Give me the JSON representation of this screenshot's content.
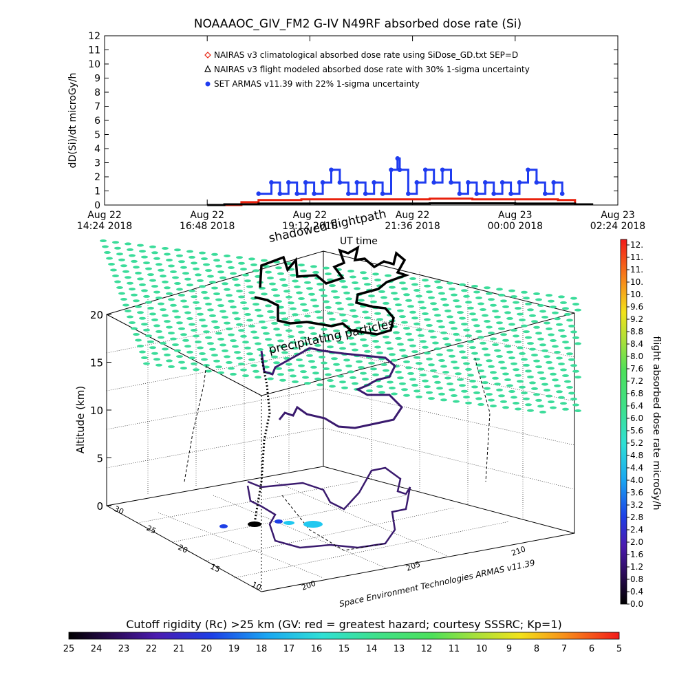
{
  "title": "NOAAAOC_GIV_FM2 G-IV    N49RF  absorbed dose rate (Si)",
  "chart_data": [
    {
      "type": "scatter",
      "ylabel": "dD(Si)/dt microGy/h",
      "ylim": [
        0,
        12
      ],
      "yticks": [
        0,
        1,
        2,
        3,
        4,
        5,
        6,
        7,
        8,
        9,
        10,
        11,
        12
      ],
      "xticks": [
        {
          "day": "Aug 22",
          "time": "14:24 2018"
        },
        {
          "day": "Aug 22",
          "time": "16:48 2018"
        },
        {
          "day": "Aug 22",
          "time": "19:12 2018"
        },
        {
          "day": "Aug 22",
          "time": "21:36 2018"
        },
        {
          "day": "Aug 23",
          "time": "00:00 2018"
        },
        {
          "day": "Aug 23",
          "time": "02:24 2018"
        }
      ],
      "xlim_hours": [
        14.4,
        26.4
      ],
      "legend": [
        {
          "label": "NAIRAS v3 climatological absorbed dose rate using SiDose_GD.txt SEP=D",
          "marker": "diamond",
          "color": "#e8200c"
        },
        {
          "label": "NAIRAS v3 flight modeled absorbed dose rate with 30% 1-sigma uncertainty",
          "marker": "triangle",
          "color": "#000000"
        },
        {
          "label": "SET ARMAS v11.39 with 22% 1-sigma uncertainty",
          "marker": "dot",
          "color": "#1f3cf0"
        }
      ],
      "series": [
        {
          "name": "SET ARMAS v11.39 with 22% 1-sigma uncertainty",
          "color": "#1f3cf0",
          "x": [
            18.0,
            18.3,
            18.5,
            18.7,
            18.9,
            19.1,
            19.3,
            19.5,
            19.7,
            19.9,
            20.1,
            20.3,
            20.5,
            20.7,
            20.9,
            21.1,
            21.25,
            21.3,
            21.5,
            21.7,
            21.9,
            22.1,
            22.3,
            22.5,
            22.7,
            22.9,
            23.1,
            23.3,
            23.5,
            23.7,
            23.9,
            24.1,
            24.3,
            24.5,
            24.7,
            24.9,
            25.1
          ],
          "y": [
            0.8,
            1.6,
            0.8,
            1.6,
            0.8,
            1.6,
            0.8,
            1.6,
            2.5,
            1.6,
            0.8,
            1.6,
            0.8,
            1.6,
            0.8,
            2.5,
            3.3,
            2.5,
            0.8,
            1.6,
            2.5,
            1.6,
            2.5,
            1.6,
            0.8,
            1.6,
            0.8,
            1.6,
            0.8,
            1.6,
            0.8,
            1.6,
            2.5,
            1.6,
            0.8,
            1.6,
            0.8
          ]
        },
        {
          "name": "NAIRAS v3 climatological absorbed dose rate using SiDose_GD.txt SEP=D",
          "color": "#e8200c",
          "x": [
            17.2,
            17.6,
            18.0,
            19.0,
            20.0,
            21.0,
            22.0,
            23.0,
            24.0,
            25.0,
            25.4
          ],
          "y": [
            0.0,
            0.2,
            0.35,
            0.4,
            0.4,
            0.4,
            0.45,
            0.4,
            0.4,
            0.35,
            0.0
          ]
        },
        {
          "name": "NAIRAS v3 flight modeled absorbed dose rate with 30% 1-sigma uncertainty",
          "color": "#000000",
          "x": [
            16.8,
            17.2,
            18.0,
            20.0,
            22.0,
            24.0,
            25.4,
            25.8
          ],
          "y": [
            0.0,
            0.05,
            0.1,
            0.1,
            0.12,
            0.1,
            0.05,
            0.0
          ]
        }
      ]
    },
    {
      "type": "scatter",
      "zlabel": "Altitude (km)",
      "zticks": [
        0,
        5,
        10,
        15,
        20
      ],
      "lat_ticks": [
        10,
        15,
        20,
        25,
        30
      ],
      "lon_ticks": [
        200,
        205,
        210
      ],
      "annotations": [
        "shadowed flightpath",
        "UT time",
        "precipitating particles"
      ],
      "credit": "Space Environment Technologies ARMAS v11.39",
      "colorbar": {
        "label": "flight absorbed dose rate microGy/h",
        "ticks": [
          "12.",
          "11.",
          "11.",
          "10.",
          "10.",
          "9.6",
          "9.2",
          "8.8",
          "8.4",
          "8.0",
          "7.6",
          "7.2",
          "6.8",
          "6.4",
          "6.0",
          "5.6",
          "5.2",
          "4.8",
          "4.4",
          "4.0",
          "3.6",
          "3.2",
          "2.8",
          "2.4",
          "2.0",
          "1.6",
          "1.2",
          "0.8",
          "0.4",
          "0.0"
        ]
      },
      "rigidity_bar": {
        "label": "Cutoff rigidity (Rc) >25 km (GV: red = greatest hazard; courtesy SSSRC; Kp=1)",
        "ticks": [
          "25",
          "24",
          "23",
          "22",
          "21",
          "20",
          "19",
          "18",
          "17",
          "16",
          "15",
          "14",
          "13",
          "12",
          "11",
          "10",
          "9",
          "8",
          "7",
          "6",
          "5"
        ]
      },
      "colors": {
        "grid": "#3bdc9a",
        "flight": "#000000",
        "track": "#3a1a6e"
      }
    }
  ]
}
